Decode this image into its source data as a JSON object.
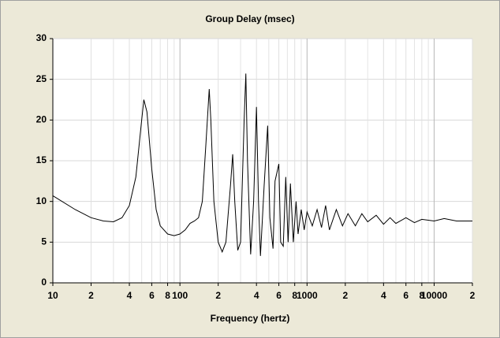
{
  "chart_data": {
    "type": "line",
    "title": "Group Delay (msec)",
    "x_label": "Frequency (hertz)",
    "x_scale": "log",
    "grid": true,
    "color": "#000000",
    "x": [
      10,
      15,
      20,
      25,
      30,
      35,
      40,
      45,
      50,
      52,
      55,
      60,
      65,
      70,
      80,
      90,
      100,
      110,
      120,
      130,
      140,
      150,
      160,
      170,
      175,
      185,
      200,
      215,
      230,
      250,
      260,
      270,
      285,
      300,
      320,
      330,
      340,
      360,
      380,
      400,
      415,
      430,
      460,
      490,
      510,
      540,
      560,
      600,
      620,
      650,
      680,
      710,
      740,
      780,
      820,
      850,
      900,
      950,
      1000,
      1100,
      1200,
      1300,
      1400,
      1500,
      1700,
      1900,
      2100,
      2400,
      2700,
      3000,
      3500,
      4000,
      4500,
      5000,
      6000,
      7000,
      8000,
      10000,
      12000,
      15000,
      20000
    ],
    "values": [
      10.7,
      9,
      8,
      7.6,
      7.5,
      8,
      9.5,
      13,
      20,
      22.5,
      21,
      14,
      9,
      7,
      6,
      5.8,
      6,
      6.5,
      7.3,
      7.6,
      8,
      10,
      17,
      23.8,
      20,
      10,
      5,
      3.8,
      5,
      12,
      15.8,
      10,
      4,
      5,
      20,
      25.7,
      15,
      3.5,
      10,
      21.6,
      10,
      3.3,
      12,
      19.3,
      8,
      4.2,
      12.5,
      14.6,
      5,
      4.5,
      13,
      5,
      12.2,
      5,
      10,
      6,
      9,
      6.5,
      8.7,
      7,
      9,
      6.8,
      9.5,
      6.5,
      9,
      7,
      8.5,
      7,
      8.5,
      7.5,
      8.3,
      7.2,
      8,
      7.3,
      8,
      7.4,
      7.8,
      7.6,
      7.9,
      7.6,
      7.6
    ],
    "xlim": [
      10,
      20000
    ],
    "xticks": [
      10,
      {
        "value": 20,
        "label": "2"
      },
      {
        "value": 40,
        "label": "4"
      },
      {
        "value": 60,
        "label": "6"
      },
      {
        "value": 80,
        "label": "8"
      },
      100,
      {
        "value": 200,
        "label": "2"
      },
      {
        "value": 400,
        "label": "4"
      },
      {
        "value": 600,
        "label": "6"
      },
      {
        "value": 800,
        "label": "8"
      },
      1000,
      {
        "value": 2000,
        "label": "2"
      },
      {
        "value": 4000,
        "label": "4"
      },
      {
        "value": 6000,
        "label": "6"
      },
      {
        "value": 8000,
        "label": "8"
      },
      10000,
      {
        "value": 20000,
        "label": "2"
      }
    ],
    "minor_xticks": [
      30,
      50,
      70,
      90,
      300,
      500,
      700,
      900,
      3000,
      5000,
      7000,
      9000
    ],
    "ylim": [
      0,
      30
    ],
    "yticks": [
      0,
      5,
      10,
      15,
      20,
      25,
      30
    ]
  }
}
